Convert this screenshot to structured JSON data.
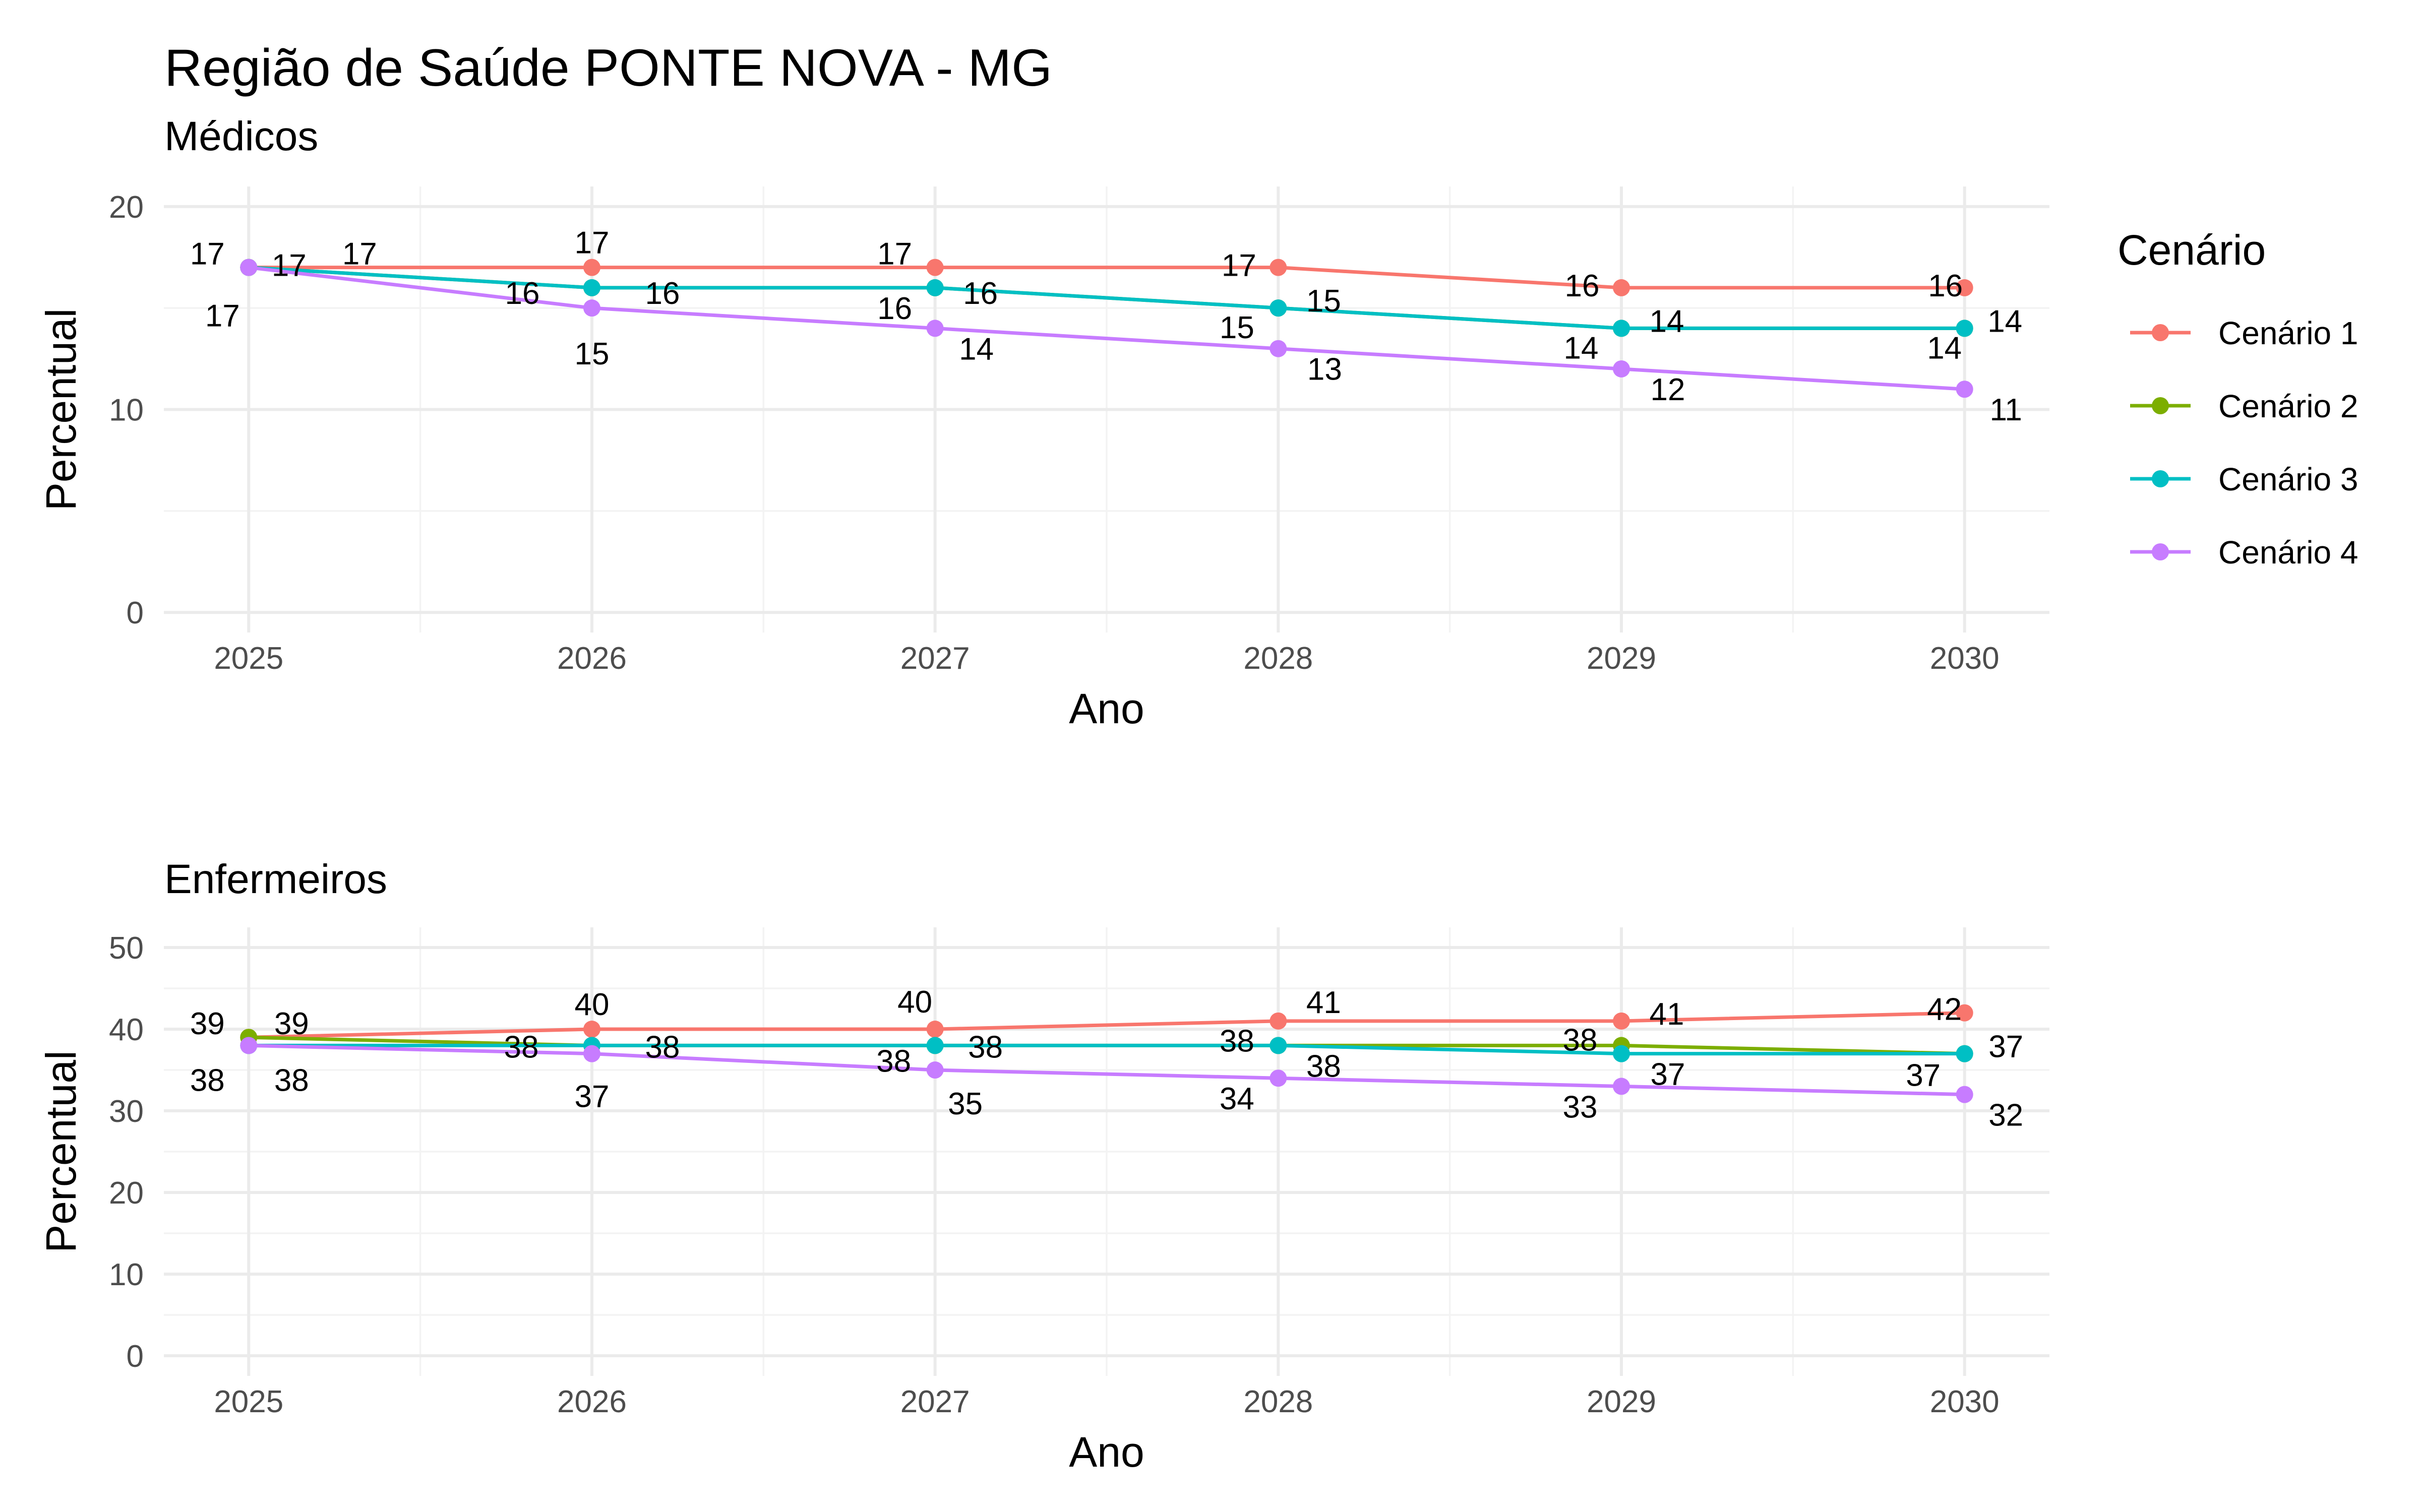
{
  "title": "Região de Saúde PONTE NOVA - MG",
  "legend": {
    "title": "Cenário",
    "position": "right",
    "items": [
      {
        "label": "Cenário 1",
        "color": "#F8766D"
      },
      {
        "label": "Cenário 2",
        "color": "#7CAE00"
      },
      {
        "label": "Cenário 3",
        "color": "#00BFC4"
      },
      {
        "label": "Cenário 4",
        "color": "#C77CFF"
      }
    ]
  },
  "chart_data": [
    {
      "type": "line",
      "title": "Médicos",
      "xlabel": "Ano",
      "ylabel": "Percentual",
      "x": [
        2025,
        2026,
        2027,
        2028,
        2029,
        2030
      ],
      "x_ticks": [
        "2025",
        "2026",
        "2027",
        "2028",
        "2029",
        "2030"
      ],
      "ylim": [
        0,
        20
      ],
      "y_ticks": [
        "0",
        "10",
        "20"
      ],
      "grid": true,
      "series": [
        {
          "name": "Cenário 1",
          "color": "#F8766D",
          "values": [
            17,
            17,
            17,
            17,
            16,
            16
          ],
          "labels": [
            "17",
            "17",
            "17",
            "17",
            "16",
            "16"
          ]
        },
        {
          "name": "Cenário 2",
          "color": "#7CAE00",
          "values": [
            17,
            16,
            16,
            15,
            14,
            14
          ],
          "labels": [
            "17",
            "16",
            "16",
            "15",
            "14",
            "14"
          ]
        },
        {
          "name": "Cenário 3",
          "color": "#00BFC4",
          "values": [
            17,
            16,
            16,
            15,
            14,
            14
          ],
          "labels": [
            "17",
            "16",
            "16",
            "15",
            "14",
            "14"
          ]
        },
        {
          "name": "Cenário 4",
          "color": "#C77CFF",
          "values": [
            17,
            15,
            14,
            13,
            12,
            11
          ],
          "labels": [
            "17",
            "15",
            "14",
            "13",
            "12",
            "11"
          ]
        }
      ]
    },
    {
      "type": "line",
      "title": "Enfermeiros",
      "xlabel": "Ano",
      "ylabel": "Percentual",
      "x": [
        2025,
        2026,
        2027,
        2028,
        2029,
        2030
      ],
      "x_ticks": [
        "2025",
        "2026",
        "2027",
        "2028",
        "2029",
        "2030"
      ],
      "ylim": [
        0,
        50
      ],
      "y_ticks": [
        "0",
        "10",
        "20",
        "30",
        "40",
        "50"
      ],
      "grid": true,
      "series": [
        {
          "name": "Cenário 1",
          "color": "#F8766D",
          "values": [
            39,
            40,
            40,
            41,
            41,
            42
          ],
          "labels": [
            "39",
            "40",
            "40",
            "41",
            "41",
            "42"
          ]
        },
        {
          "name": "Cenário 2",
          "color": "#7CAE00",
          "values": [
            39,
            38,
            38,
            38,
            38,
            37
          ],
          "labels": [
            "39",
            "38",
            "38",
            "38",
            "38",
            "37"
          ]
        },
        {
          "name": "Cenário 3",
          "color": "#00BFC4",
          "values": [
            38,
            38,
            38,
            38,
            37,
            37
          ],
          "labels": [
            "38",
            "38",
            "38",
            "38",
            "37",
            "37"
          ]
        },
        {
          "name": "Cenário 4",
          "color": "#C77CFF",
          "values": [
            38,
            37,
            35,
            34,
            33,
            32
          ],
          "labels": [
            "38",
            "37",
            "35",
            "34",
            "33",
            "32"
          ]
        }
      ]
    }
  ]
}
